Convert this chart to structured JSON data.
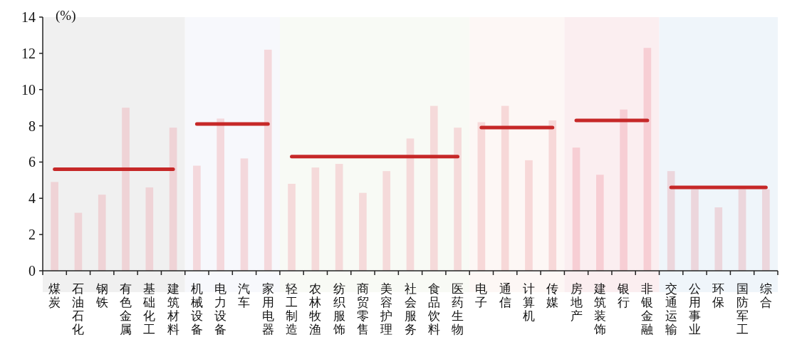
{
  "chart_data": {
    "type": "bar",
    "ylabel": "(%)",
    "categories": [
      "煤炭",
      "石油石化",
      "钢铁",
      "有色金属",
      "基础化工",
      "建筑材料",
      "机械设备",
      "电力设备",
      "汽车",
      "家用电器",
      "轻工制造",
      "农林牧渔",
      "纺织服饰",
      "商贸零售",
      "美容护理",
      "社会服务",
      "食品饮料",
      "医药生物",
      "电子",
      "通信",
      "计算机",
      "传媒",
      "房地产",
      "建筑装饰",
      "银行",
      "非银金融",
      "交通运输",
      "公用事业",
      "环保",
      "国防军工",
      "综合"
    ],
    "series": [
      {
        "values": [
          4.9,
          3.2,
          4.2,
          9.0,
          4.6,
          7.9,
          5.8,
          8.4,
          6.2,
          12.2,
          4.8,
          5.7,
          5.9,
          4.3,
          5.5,
          7.3,
          9.1,
          7.9,
          8.2,
          9.1,
          6.1,
          8.3,
          6.8,
          5.3,
          8.9,
          12.3,
          5.5,
          4.5,
          3.5,
          4.5,
          4.5
        ],
        "colors": [
          "#efd3d6",
          "#efd3d6",
          "#efd3d6",
          "#efd3d6",
          "#efd3d6",
          "#efd3d6",
          "#f4d8dc",
          "#f4d8dc",
          "#f4d8dc",
          "#f4d8dc",
          "#f5dada",
          "#f5dada",
          "#f5dada",
          "#f5dada",
          "#f5dada",
          "#f5dada",
          "#f5dada",
          "#f5dada",
          "#f7d8d8",
          "#f7d8d8",
          "#f7d8d8",
          "#f7d8d8",
          "#f7ced4",
          "#f7ced4",
          "#f7ced4",
          "#f7ced4",
          "#ecd6dc",
          "#ecd6dc",
          "#ecd6dc",
          "#ecd6dc",
          "#ecd6dc"
        ]
      },
      {
        "type": "line",
        "color": "#c62828",
        "values": [
          5.6,
          5.6,
          5.6,
          5.6,
          5.6,
          5.6,
          null,
          null,
          null,
          null,
          null,
          null,
          null,
          null,
          null,
          null,
          null,
          null,
          null,
          null,
          null,
          null,
          null,
          null,
          null,
          null,
          null,
          null,
          null,
          null,
          null
        ]
      },
      {
        "type": "line",
        "color": "#c62828",
        "values": [
          null,
          null,
          null,
          null,
          null,
          null,
          8.1,
          8.1,
          8.1,
          8.1,
          null,
          null,
          null,
          null,
          null,
          null,
          null,
          null,
          null,
          null,
          null,
          null,
          null,
          null,
          null,
          null,
          null,
          null,
          null,
          null,
          null
        ]
      },
      {
        "type": "line",
        "color": "#c62828",
        "values": [
          null,
          null,
          null,
          null,
          null,
          null,
          null,
          null,
          null,
          null,
          6.3,
          6.3,
          6.3,
          6.3,
          6.3,
          6.3,
          6.3,
          6.3,
          null,
          null,
          null,
          null,
          null,
          null,
          null,
          null,
          null,
          null,
          null,
          null,
          null
        ]
      },
      {
        "type": "line",
        "color": "#c62828",
        "values": [
          null,
          null,
          null,
          null,
          null,
          null,
          null,
          null,
          null,
          null,
          null,
          null,
          null,
          null,
          null,
          null,
          null,
          null,
          7.9,
          7.9,
          7.9,
          7.9,
          null,
          null,
          null,
          null,
          null,
          null,
          null,
          null,
          null
        ]
      },
      {
        "type": "line",
        "color": "#c62828",
        "values": [
          null,
          null,
          null,
          null,
          null,
          null,
          null,
          null,
          null,
          null,
          null,
          null,
          null,
          null,
          null,
          null,
          null,
          null,
          null,
          null,
          null,
          null,
          8.3,
          8.3,
          8.3,
          8.3,
          null,
          null,
          null,
          null,
          null
        ]
      },
      {
        "type": "line",
        "color": "#c62828",
        "values": [
          null,
          null,
          null,
          null,
          null,
          null,
          null,
          null,
          null,
          null,
          null,
          null,
          null,
          null,
          null,
          null,
          null,
          null,
          null,
          null,
          null,
          null,
          null,
          null,
          null,
          null,
          4.6,
          4.6,
          4.6,
          4.6,
          4.6
        ]
      }
    ],
    "bands": [
      {
        "axis": "x",
        "from": "煤炭",
        "to": "建筑材料",
        "color": "#f0f0f0"
      },
      {
        "axis": "x",
        "from": "机械设备",
        "to": "家用电器",
        "color": "#f7f8fc"
      },
      {
        "axis": "x",
        "from": "轻工制造",
        "to": "医药生物",
        "color": "#f8faf5"
      },
      {
        "axis": "x",
        "from": "电子",
        "to": "传媒",
        "color": "#fdf7f5"
      },
      {
        "axis": "x",
        "from": "房地产",
        "to": "非银金融",
        "color": "#fbeef0"
      },
      {
        "axis": "x",
        "from": "交通运输",
        "to": "综合",
        "color": "#eff5fa"
      }
    ],
    "ylim": [
      0,
      14
    ],
    "yticks": [
      0,
      2,
      4,
      6,
      8,
      10,
      12,
      14
    ],
    "grid": false
  }
}
